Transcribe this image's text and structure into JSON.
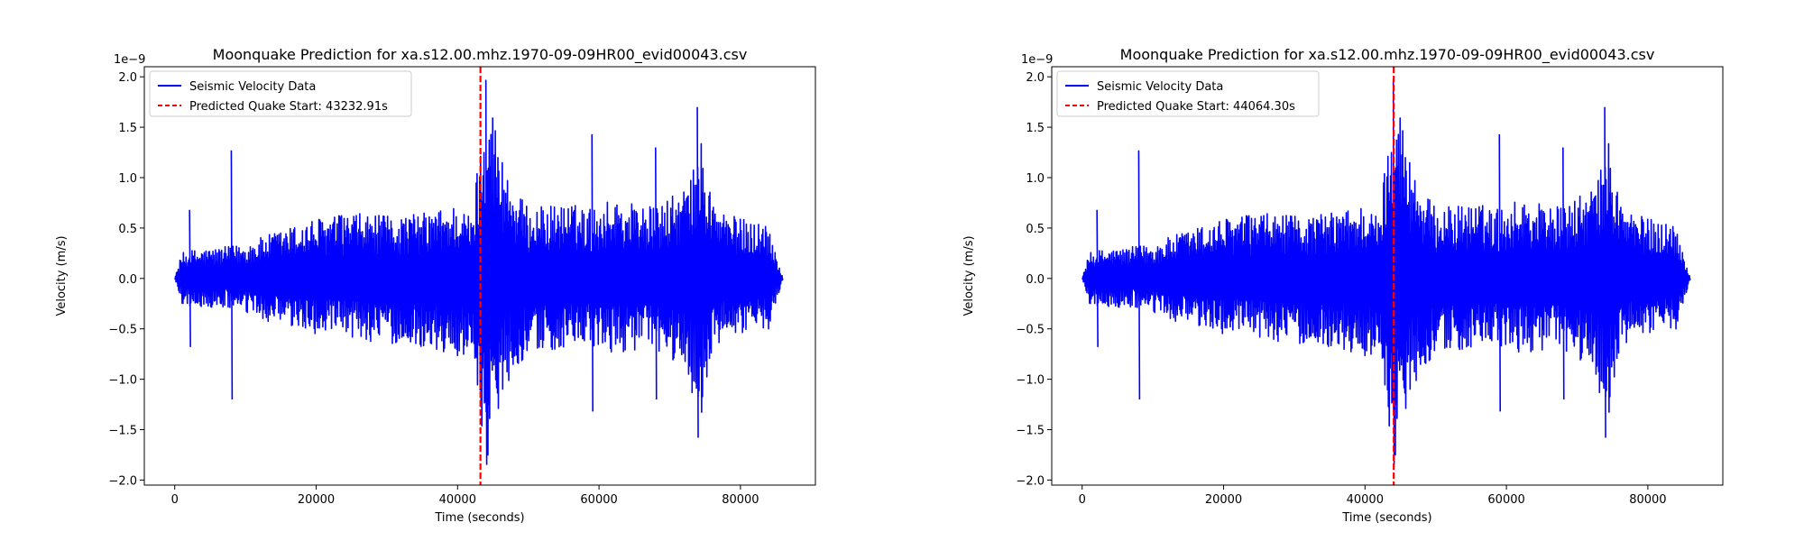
{
  "colors": {
    "signal": "#0000ff",
    "marker": "#ff0000",
    "axis": "#000000",
    "background": "#ffffff"
  },
  "chart_data": [
    {
      "type": "line",
      "title": "Moonquake Prediction for xa.s12.00.mhz.1970-09-09HR00_evid00043.csv",
      "xlabel": "Time (seconds)",
      "ylabel": "Velocity (m/s)",
      "y_offset_label": "1e−9",
      "xlim": [
        -4300,
        90600
      ],
      "ylim": [
        -2.05,
        2.1
      ],
      "x_ticks": [
        0,
        20000,
        40000,
        60000,
        80000
      ],
      "x_tick_labels": [
        "0",
        "20000",
        "40000",
        "60000",
        "80000"
      ],
      "y_ticks": [
        -2.0,
        -1.5,
        -1.0,
        -0.5,
        0.0,
        0.5,
        1.0,
        1.5,
        2.0
      ],
      "y_tick_labels": [
        "−2.0",
        "−1.5",
        "−1.0",
        "−0.5",
        "0.0",
        "0.5",
        "1.0",
        "1.5",
        "2.0"
      ],
      "grid": false,
      "legend_position": "top-left",
      "series": [
        {
          "name": "Seismic Velocity Data",
          "envelope": {
            "x": [
              0,
              1000,
              2000,
              5000,
              8000,
              10000,
              15000,
              20000,
              25000,
              30000,
              35000,
              38000,
              40000,
              42000,
              43500,
              44500,
              46000,
              48000,
              50000,
              55000,
              59000,
              62000,
              66000,
              68000,
              70000,
              72000,
              73500,
              74500,
              76000,
              78000,
              80000,
              84000,
              86000
            ],
            "upper": [
              0.0,
              0.25,
              0.28,
              0.3,
              0.32,
              0.35,
              0.48,
              0.6,
              0.65,
              0.62,
              0.65,
              0.7,
              0.75,
              0.6,
              1.6,
              1.9,
              1.3,
              0.9,
              0.7,
              0.75,
              0.7,
              0.8,
              0.75,
              0.7,
              0.8,
              0.9,
              1.1,
              1.4,
              0.8,
              0.65,
              0.6,
              0.55,
              0.0
            ],
            "lower": [
              0.0,
              -0.25,
              -0.28,
              -0.3,
              -0.3,
              -0.35,
              -0.48,
              -0.55,
              -0.6,
              -0.65,
              -0.68,
              -0.75,
              -0.8,
              -0.7,
              -1.5,
              -1.85,
              -1.2,
              -0.9,
              -0.75,
              -0.7,
              -0.7,
              -0.75,
              -0.7,
              -0.75,
              -0.8,
              -0.9,
              -1.2,
              -1.4,
              -0.75,
              -0.6,
              -0.55,
              -0.5,
              0.0
            ]
          },
          "spikes": [
            {
              "x": 2100,
              "high": 0.68,
              "low": -0.68
            },
            {
              "x": 8000,
              "high": 1.27,
              "low": -1.2
            },
            {
              "x": 44000,
              "high": 1.97,
              "low": -1.85
            },
            {
              "x": 59000,
              "high": 1.43,
              "low": -1.32
            },
            {
              "x": 68000,
              "high": 1.3,
              "low": -1.2
            },
            {
              "x": 73900,
              "high": 1.7,
              "low": -1.58
            }
          ]
        },
        {
          "name": "Predicted Quake Start: 43232.91s",
          "x": 43232.91
        }
      ]
    },
    {
      "type": "line",
      "title": "Moonquake Prediction for xa.s12.00.mhz.1970-09-09HR00_evid00043.csv",
      "xlabel": "Time (seconds)",
      "ylabel": "Velocity (m/s)",
      "y_offset_label": "1e−9",
      "xlim": [
        -4300,
        90600
      ],
      "ylim": [
        -2.05,
        2.1
      ],
      "x_ticks": [
        0,
        20000,
        40000,
        60000,
        80000
      ],
      "x_tick_labels": [
        "0",
        "20000",
        "40000",
        "60000",
        "80000"
      ],
      "y_ticks": [
        -2.0,
        -1.5,
        -1.0,
        -0.5,
        0.0,
        0.5,
        1.0,
        1.5,
        2.0
      ],
      "y_tick_labels": [
        "−2.0",
        "−1.5",
        "−1.0",
        "−0.5",
        "0.0",
        "0.5",
        "1.0",
        "1.5",
        "2.0"
      ],
      "grid": false,
      "legend_position": "top-left",
      "series": [
        {
          "name": "Seismic Velocity Data",
          "envelope": {
            "x": [
              0,
              1000,
              2000,
              5000,
              8000,
              10000,
              15000,
              20000,
              25000,
              30000,
              35000,
              38000,
              40000,
              42000,
              43500,
              44500,
              46000,
              48000,
              50000,
              55000,
              59000,
              62000,
              66000,
              68000,
              70000,
              72000,
              73500,
              74500,
              76000,
              78000,
              80000,
              84000,
              86000
            ],
            "upper": [
              0.0,
              0.25,
              0.28,
              0.3,
              0.32,
              0.35,
              0.48,
              0.6,
              0.65,
              0.62,
              0.65,
              0.7,
              0.75,
              0.6,
              1.6,
              1.9,
              1.3,
              0.9,
              0.7,
              0.75,
              0.7,
              0.8,
              0.75,
              0.7,
              0.8,
              0.9,
              1.1,
              1.4,
              0.8,
              0.65,
              0.6,
              0.55,
              0.0
            ],
            "lower": [
              0.0,
              -0.25,
              -0.28,
              -0.3,
              -0.3,
              -0.35,
              -0.48,
              -0.55,
              -0.6,
              -0.65,
              -0.68,
              -0.75,
              -0.8,
              -0.7,
              -1.5,
              -1.85,
              -1.2,
              -0.9,
              -0.75,
              -0.7,
              -0.7,
              -0.75,
              -0.7,
              -0.75,
              -0.8,
              -0.9,
              -1.2,
              -1.4,
              -0.75,
              -0.6,
              -0.55,
              -0.5,
              0.0
            ]
          },
          "spikes": [
            {
              "x": 2100,
              "high": 0.68,
              "low": -0.68
            },
            {
              "x": 8000,
              "high": 1.27,
              "low": -1.2
            },
            {
              "x": 44000,
              "high": 1.97,
              "low": -1.85
            },
            {
              "x": 59000,
              "high": 1.43,
              "low": -1.32
            },
            {
              "x": 68000,
              "high": 1.3,
              "low": -1.2
            },
            {
              "x": 73900,
              "high": 1.7,
              "low": -1.58
            }
          ]
        },
        {
          "name": "Predicted Quake Start: 44064.30s",
          "x": 44064.3
        }
      ]
    }
  ]
}
